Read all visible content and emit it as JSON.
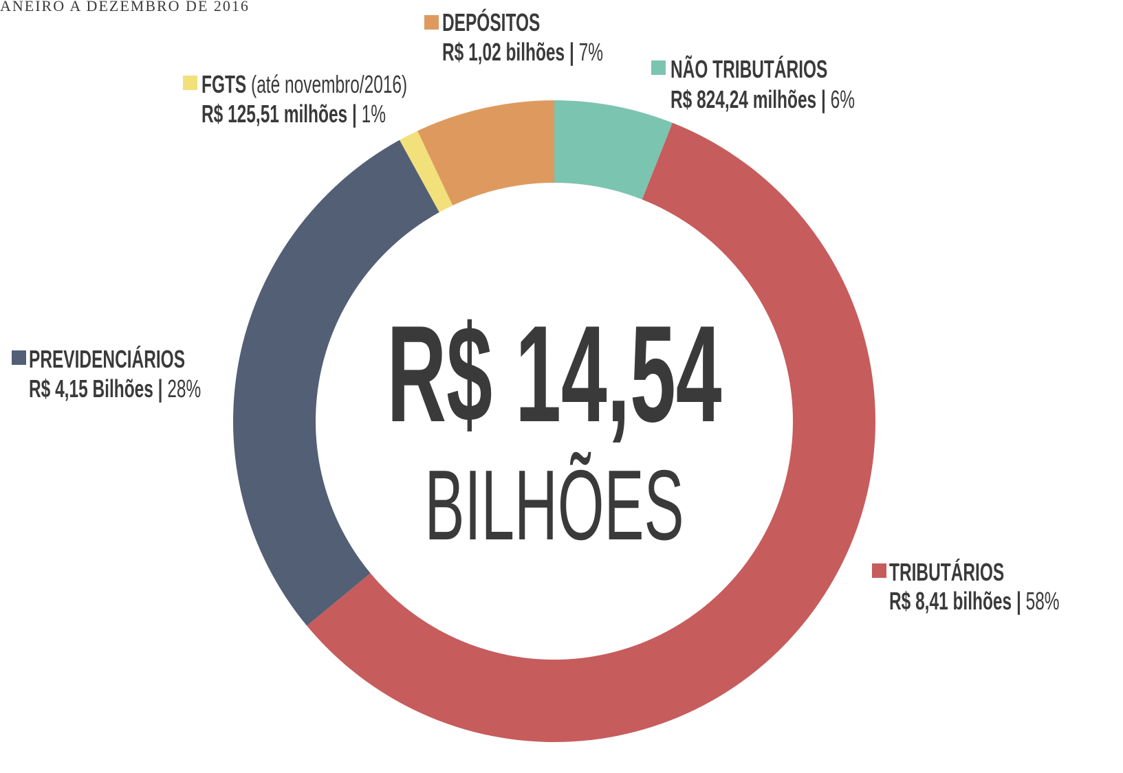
{
  "chart_data": {
    "type": "donut",
    "title": "ANEIRO A DEZEMBRO DE 2016",
    "center_value": "R$ 14,54",
    "center_unit": "BILHÕES",
    "categories": [
      "NÃO TRIBUTÁRIOS",
      "TRIBUTÁRIOS",
      "PREVIDENCIÁRIOS",
      "FGTS",
      "DEPÓSITOS"
    ],
    "notes": [
      null,
      null,
      null,
      "(até novembro/2016)",
      null
    ],
    "amounts": [
      "R$ 824,24 milhões",
      "R$ 8,41 bilhões",
      "R$ 4,15 Bilhões",
      "R$ 125,51 milhões",
      "R$ 1,02 bilhões"
    ],
    "separator": "|",
    "values": [
      6,
      58,
      28,
      1,
      7
    ],
    "value_labels": [
      "6%",
      "58%",
      "28%",
      "1%",
      "7%"
    ],
    "colors": [
      "#7bc4b0",
      "#c75c5c",
      "#525f75",
      "#f2e07a",
      "#de9a5e"
    ]
  }
}
